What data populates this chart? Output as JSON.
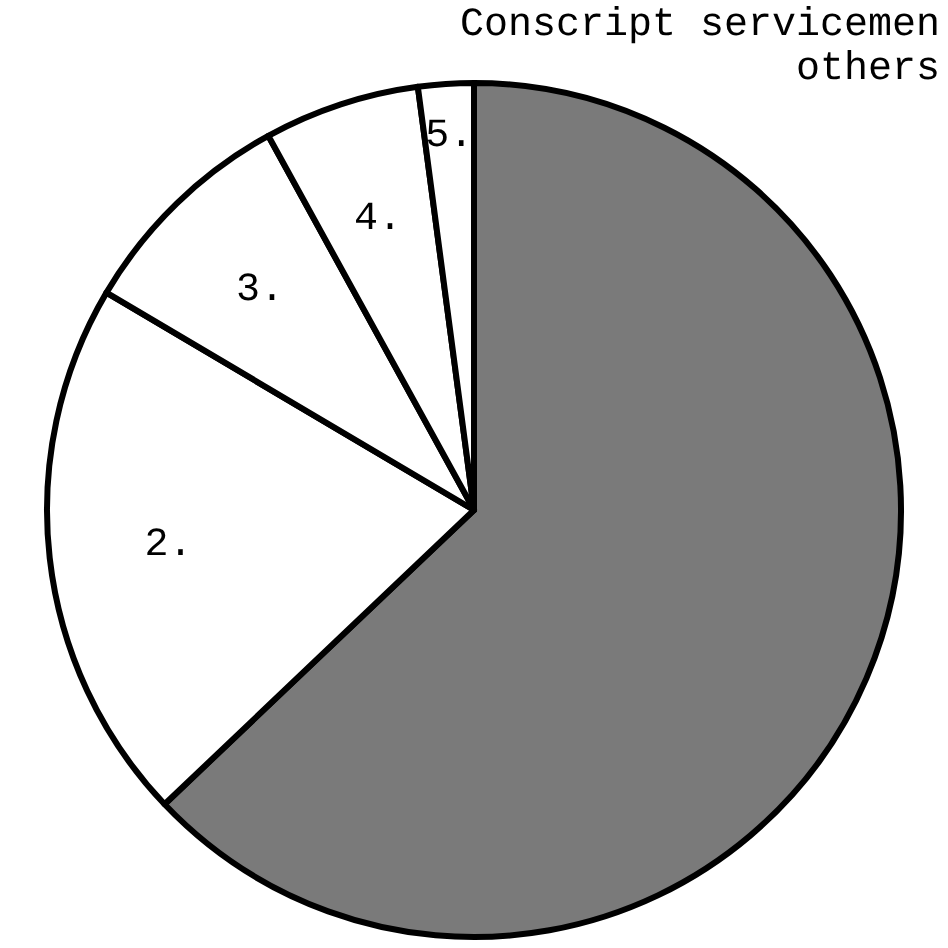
{
  "chart_data": {
    "type": "pie",
    "categories": [
      "Conscript servicemen others",
      "2.",
      "3.",
      "4.",
      "5."
    ],
    "values": [
      62.9,
      20.6,
      8.5,
      5.9,
      2.1
    ],
    "colors": [
      "#7a7a7a",
      "#ffffff",
      "#ffffff",
      "#ffffff",
      "#ffffff"
    ],
    "legend": false
  }
}
